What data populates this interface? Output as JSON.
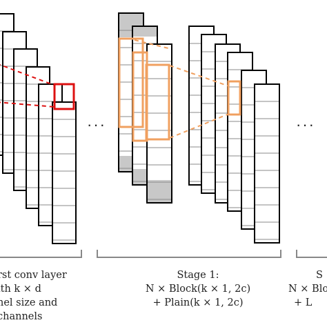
{
  "labels": {
    "first_conv": {
      "line1": "rst conv layer",
      "line2": "ith k × d",
      "line3": "nel size and",
      "line4": "channels"
    },
    "stage1": {
      "line1": "Stage 1:",
      "line2": "N × Block(k × 1, 2c)",
      "line3": "+ Plain(k × 1, 2c)"
    },
    "stage_next": {
      "line1": "S",
      "line2": "N × Block",
      "line3": "+ L"
    }
  },
  "ellipsis": [
    "···",
    "···"
  ],
  "colors": {
    "outline": "#000000",
    "highlight_red": "#dd1111",
    "highlight_orange": "#f0a060",
    "shaded_cell": "#c8c8c8",
    "bracket": "#888888"
  }
}
